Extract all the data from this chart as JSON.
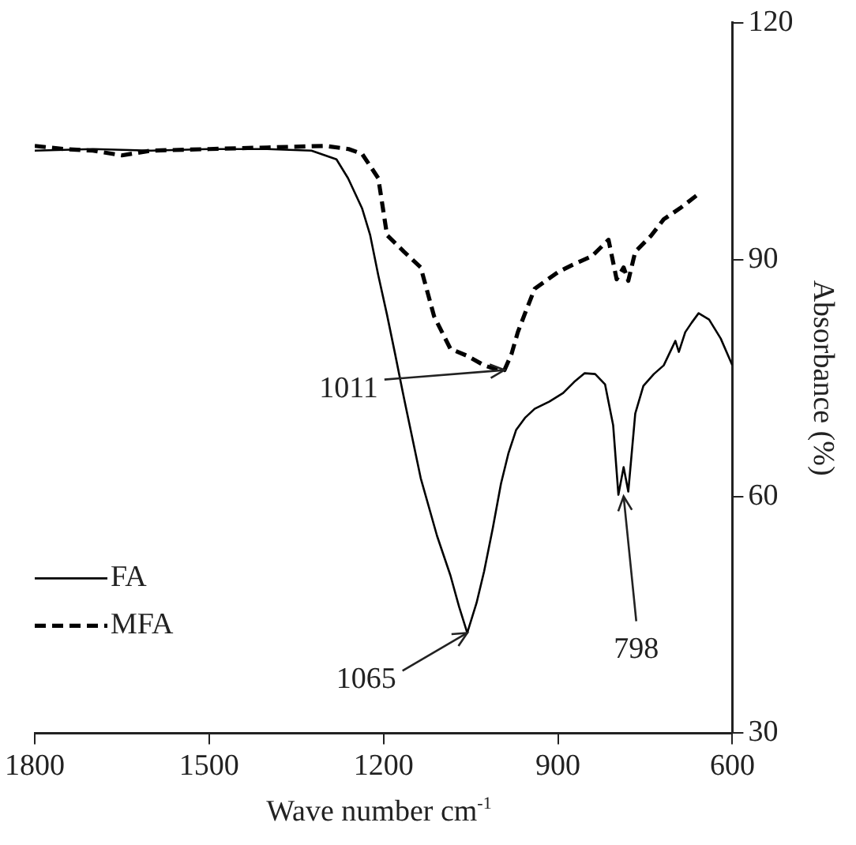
{
  "chart_data": {
    "type": "line",
    "xlabel": "Wave number cm$^{-1}$",
    "ylabel": "Absorbance (%)",
    "xlim": [
      1800,
      600
    ],
    "xticks": [
      1800,
      1500,
      1200,
      900,
      600
    ],
    "ylim": [
      30,
      120
    ],
    "yticks": [
      30,
      60,
      90,
      120
    ],
    "grid": false,
    "legend": "bottom left",
    "marker": "none",
    "series": [
      {
        "name": "FA",
        "color": "#000000",
        "line_style": "solid",
        "x": [
          1800,
          1700,
          1600,
          1500,
          1400,
          1324,
          1281,
          1261,
          1237,
          1223,
          1209,
          1194,
          1180,
          1165,
          1136,
          1108,
          1085,
          1070,
          1056,
          1040,
          1027,
          1012,
          998,
          985,
          972,
          956,
          940,
          915,
          891,
          872,
          854,
          836,
          819,
          805,
          796,
          787,
          779,
          767,
          753,
          735,
          718,
          698,
          692,
          681,
          670,
          658,
          640,
          620,
          600
        ],
        "values": [
          103.8,
          104,
          103.8,
          104,
          104,
          103.8,
          102.7,
          100.3,
          96.5,
          93.1,
          88,
          83,
          78,
          72.5,
          62.3,
          55,
          50,
          46,
          42.7,
          46.5,
          50.5,
          56,
          61.6,
          65.5,
          68.4,
          70,
          71.1,
          72,
          73.1,
          74.5,
          75.6,
          75.5,
          74.2,
          69,
          60.2,
          63.7,
          60.6,
          70.5,
          74,
          75.5,
          76.6,
          79.7,
          78.3,
          80.8,
          82,
          83.2,
          82.4,
          80,
          76.6
        ]
      },
      {
        "name": "MFA",
        "color": "#000000",
        "line_style": "dashed",
        "x": [
          1800,
          1750,
          1700,
          1650,
          1600,
          1500,
          1400,
          1300,
          1260,
          1237,
          1209,
          1194,
          1165,
          1136,
          1113,
          1085,
          1056,
          1027,
          1011,
          992,
          980,
          969,
          955,
          940,
          900,
          870,
          842,
          813,
          799,
          787,
          779,
          767,
          740,
          718,
          690,
          660
        ],
        "values": [
          104.4,
          104,
          103.8,
          103.2,
          103.8,
          104,
          104.2,
          104.4,
          104,
          103.4,
          100.3,
          93.1,
          91,
          89,
          82.8,
          78.7,
          77.8,
          76.6,
          76.2,
          76,
          78,
          80.8,
          83.5,
          86.3,
          88.4,
          89.5,
          90.4,
          92.5,
          87.5,
          89,
          87.3,
          91,
          93,
          95.1,
          96.5,
          98.2
        ]
      }
    ],
    "annotations": [
      {
        "text": "1011",
        "x": 992,
        "y": 76
      },
      {
        "text": "1065",
        "x": 1056,
        "y": 42.7
      },
      {
        "text": "798",
        "x": 787,
        "y": 60
      }
    ]
  }
}
